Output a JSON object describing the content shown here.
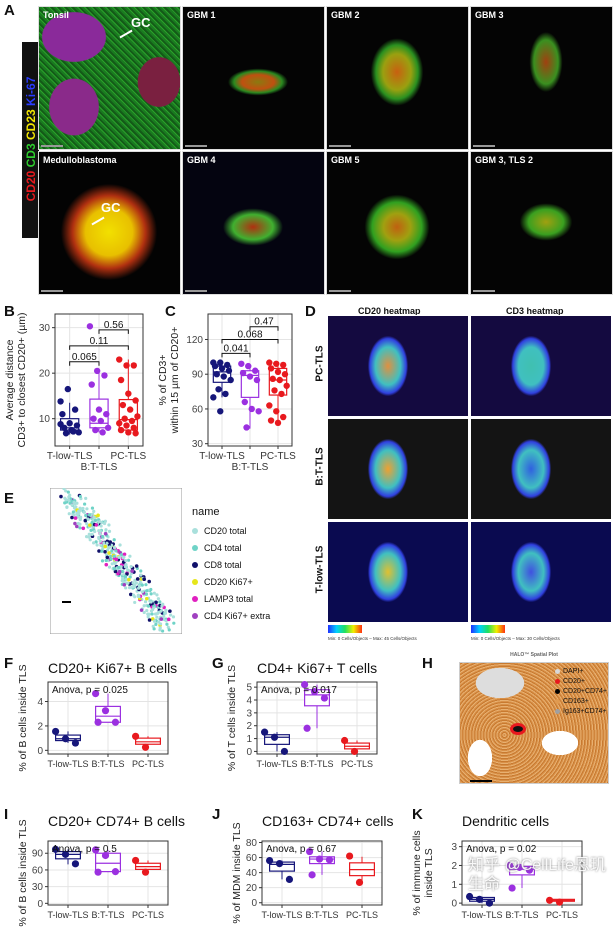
{
  "panels": {
    "A": "A",
    "B": "B",
    "C": "C",
    "D": "D",
    "E": "E",
    "F": "F",
    "G": "G",
    "H": "H",
    "I": "I",
    "J": "J",
    "K": "K"
  },
  "panel_a": {
    "channels": [
      {
        "name": "CD20",
        "color": "#e8191e"
      },
      {
        "name": "CD3",
        "color": "#2ecc2e"
      },
      {
        "name": "CD23",
        "color": "#f2e600"
      },
      {
        "name": "Ki-67",
        "color": "#2a3cff"
      }
    ],
    "tiles": [
      "Tonsil",
      "GBM 1",
      "GBM 2",
      "GBM 3",
      "Medulloblastoma",
      "GBM 4",
      "GBM 5",
      "GBM 3, TLS 2"
    ],
    "gc_label": "GC"
  },
  "panel_d": {
    "columns": [
      "CD20 heatmap",
      "CD3 heatmap"
    ],
    "rows": [
      "PC-TLS",
      "B:T-TLS",
      "T-low-TLS"
    ],
    "scale_cd20": "Min: 0 Cells/Objects – Max: 45 Cells/Objects",
    "scale_cd3": "Min: 0 Cells/Objects – Max: 30 Cells/Objects"
  },
  "panel_e": {
    "legend_title": "name",
    "legend": [
      {
        "label": "CD20 total",
        "color": "#a9e0dc"
      },
      {
        "label": "CD4 total",
        "color": "#6fd3c7"
      },
      {
        "label": "CD8 total",
        "color": "#10106a"
      },
      {
        "label": "CD20 Ki67+",
        "color": "#e6e61a"
      },
      {
        "label": "LAMP3 total",
        "color": "#e020c0"
      },
      {
        "label": "CD4 Ki67+ extra",
        "color": "#a040c0"
      }
    ]
  },
  "panel_h": {
    "title": "HALO™ Spatial Plot",
    "legend": [
      {
        "label": "DAPI+",
        "color": "#d8d8d8"
      },
      {
        "label": "CD20+",
        "color": "#e8191e"
      },
      {
        "label": "CD20+CD74+",
        "color": "#000000"
      },
      {
        "label": "CD163+",
        "color": "#e09a50"
      },
      {
        "label": "Ig163+CD74+",
        "color": "#a0a0a0"
      }
    ]
  },
  "colors": {
    "T-low-TLS": "#16167a",
    "B:T-TLS": "#9b30e0",
    "PC-TLS": "#e8191e"
  },
  "watermark": "知乎 @CellLife恩玑生命",
  "chart_data": [
    {
      "id": "B",
      "type": "box",
      "title": "",
      "ylabel": [
        "Average distance",
        "CD3+ to closest CD20+ (µm)"
      ],
      "ylim": [
        4,
        33
      ],
      "yticks": [
        10,
        20,
        30
      ],
      "categories": [
        "T-low-TLS",
        "B:T-TLS",
        "PC-TLS"
      ],
      "xtick_rotated": true,
      "grid": true,
      "series": [
        {
          "q1": 7.5,
          "median": 8,
          "q3": 10,
          "lo": 6.5,
          "hi": 13.5,
          "points": [
            13.8,
            16.5,
            12,
            11,
            9,
            8.5,
            8,
            7.5,
            7,
            6.8,
            7.2,
            8.8
          ]
        },
        {
          "q1": 8,
          "median": 9,
          "q3": 14.3,
          "lo": 7,
          "hi": 20.3,
          "points": [
            30.3,
            20.5,
            19.5,
            17.5,
            12,
            11,
            10,
            9.5,
            8,
            7.5,
            7
          ]
        },
        {
          "q1": 7.5,
          "median": 9.8,
          "q3": 14.2,
          "lo": 6.5,
          "hi": 23,
          "points": [
            23,
            21.7,
            21.7,
            18.5,
            15.5,
            14,
            13,
            12,
            10.5,
            10,
            9.5,
            9,
            8.5,
            8,
            7.5,
            7,
            6.8
          ]
        }
      ],
      "comparisons": [
        {
          "pair": [
            0,
            1
          ],
          "p": "0.065",
          "y": 22.5
        },
        {
          "pair": [
            0,
            2
          ],
          "p": "0.11",
          "y": 26
        },
        {
          "pair": [
            1,
            2
          ],
          "p": "0.56",
          "y": 29.5
        }
      ]
    },
    {
      "id": "C",
      "type": "box",
      "title": "",
      "ylabel": [
        "% of CD3+",
        "within 15 µm of CD20+"
      ],
      "ylim": [
        28,
        142
      ],
      "yticks": [
        30,
        60,
        90,
        120
      ],
      "categories": [
        "T-low-TLS",
        "B:T-TLS",
        "PC-TLS"
      ],
      "xtick_rotated": true,
      "grid": true,
      "series": [
        {
          "q1": 83,
          "median": 92,
          "q3": 97,
          "lo": 70,
          "hi": 100,
          "points": [
            100,
            100,
            98,
            97,
            95,
            93,
            90,
            88,
            85,
            77,
            73,
            70,
            58
          ]
        },
        {
          "q1": 70,
          "median": 89,
          "q3": 93,
          "lo": 43,
          "hi": 97,
          "points": [
            99,
            97,
            93,
            91,
            88,
            85,
            66,
            60,
            58,
            44
          ]
        },
        {
          "q1": 72,
          "median": 85,
          "q3": 95,
          "lo": 48,
          "hi": 100,
          "points": [
            100,
            99,
            98,
            95,
            92,
            90,
            86,
            85,
            80,
            76,
            73,
            63,
            58,
            53,
            50,
            48
          ]
        }
      ],
      "comparisons": [
        {
          "pair": [
            0,
            1
          ],
          "p": "0.041",
          "y": 108
        },
        {
          "pair": [
            0,
            2
          ],
          "p": "0.068",
          "y": 120
        },
        {
          "pair": [
            1,
            2
          ],
          "p": "0.47",
          "y": 131
        }
      ]
    },
    {
      "id": "F",
      "type": "box",
      "title": "CD20+ Ki67+ B cells",
      "annotation": "Anova, p = 0.025",
      "ylabel": [
        "% of B cells inside TLS"
      ],
      "ylim": [
        -0.3,
        5.6
      ],
      "yticks": [
        0,
        2,
        4
      ],
      "categories": [
        "T-low-TLS",
        "B:T-TLS",
        "PC-TLS"
      ],
      "grid": true,
      "series": [
        {
          "q1": 0.8,
          "median": 0.95,
          "q3": 1.25,
          "lo": 0.6,
          "hi": 1.55,
          "points": [
            1.55,
            0.95,
            0.6
          ]
        },
        {
          "q1": 2.3,
          "median": 2.8,
          "q3": 3.6,
          "lo": 2.3,
          "hi": 4.65,
          "points": [
            4.65,
            3.25,
            2.3,
            2.3
          ]
        },
        {
          "q1": 0.5,
          "median": 0.7,
          "q3": 1.0,
          "lo": 0.25,
          "hi": 1.15,
          "points": [
            1.15,
            0.25
          ]
        }
      ]
    },
    {
      "id": "G",
      "type": "box",
      "title": "CD4+ Ki67+ T cells",
      "annotation": "Anova, p = 0.017",
      "ylabel": [
        "% of T cells inside TLS"
      ],
      "ylim": [
        -0.2,
        5.4
      ],
      "yticks": [
        0,
        1,
        2,
        3,
        4,
        5
      ],
      "categories": [
        "T-low-TLS",
        "B:T-TLS",
        "PC-TLS"
      ],
      "grid": true,
      "series": [
        {
          "q1": 0.55,
          "median": 1.1,
          "q3": 1.3,
          "lo": 0,
          "hi": 1.5,
          "points": [
            1.5,
            1.1,
            0
          ]
        },
        {
          "q1": 3.55,
          "median": 4.4,
          "q3": 4.8,
          "lo": 1.8,
          "hi": 5.2,
          "points": [
            5.2,
            4.65,
            4.15,
            1.8
          ]
        },
        {
          "q1": 0.2,
          "median": 0.4,
          "q3": 0.65,
          "lo": 0,
          "hi": 0.85,
          "points": [
            0.85,
            0
          ]
        }
      ]
    },
    {
      "id": "I",
      "type": "box",
      "title": "CD20+ CD74+ B cells",
      "annotation": "Anova, p = 0.5",
      "ylabel": [
        "% of B cells inside TLS"
      ],
      "ylim": [
        -3,
        112
      ],
      "yticks": [
        0,
        30,
        60,
        90
      ],
      "categories": [
        "T-low-TLS",
        "B:T-TLS",
        "PC-TLS"
      ],
      "grid": true,
      "series": [
        {
          "q1": 80,
          "median": 88,
          "q3": 93,
          "lo": 70,
          "hi": 97,
          "points": [
            97,
            88,
            71
          ]
        },
        {
          "q1": 57,
          "median": 72,
          "q3": 90,
          "lo": 56,
          "hi": 96,
          "points": [
            96,
            86,
            57,
            56
          ]
        },
        {
          "q1": 61,
          "median": 66,
          "q3": 72,
          "lo": 56,
          "hi": 77,
          "points": [
            77,
            56
          ]
        }
      ]
    },
    {
      "id": "J",
      "type": "box",
      "title": "CD163+ CD74+ cells",
      "annotation": "Anova, p = 0.67",
      "ylabel": [
        "% of MDM inside TLS"
      ],
      "ylim": [
        -3,
        82
      ],
      "yticks": [
        0,
        20,
        40,
        60,
        80
      ],
      "categories": [
        "T-low-TLS",
        "B:T-TLS",
        "PC-TLS"
      ],
      "grid": true,
      "series": [
        {
          "q1": 42,
          "median": 51,
          "q3": 54,
          "lo": 31,
          "hi": 56,
          "points": [
            56,
            52,
            31
          ]
        },
        {
          "q1": 52,
          "median": 58,
          "q3": 61,
          "lo": 37,
          "hi": 68,
          "points": [
            68,
            58,
            57,
            37
          ]
        },
        {
          "q1": 36,
          "median": 44,
          "q3": 53,
          "lo": 27,
          "hi": 61,
          "points": [
            62,
            27
          ]
        }
      ]
    },
    {
      "id": "K",
      "type": "box",
      "title": "Dendritic cells",
      "annotation": "Anova, p = 0.02",
      "ylabel": [
        "% of immune cells",
        "inside TLS"
      ],
      "ylim": [
        -0.1,
        3.3
      ],
      "yticks": [
        0,
        1,
        2,
        3
      ],
      "categories": [
        "T-low-TLS",
        "B:T-TLS",
        "PC-TLS"
      ],
      "grid": true,
      "series": [
        {
          "q1": 0.1,
          "median": 0.2,
          "q3": 0.3,
          "lo": 0,
          "hi": 0.35,
          "points": [
            0.35,
            0.2,
            0
          ]
        },
        {
          "q1": 1.5,
          "median": 1.8,
          "q3": 1.95,
          "lo": 0.8,
          "hi": 2,
          "points": [
            2,
            1.9,
            1.75,
            0.8
          ]
        },
        {
          "q1": 0.1,
          "median": 0.15,
          "q3": 0.2,
          "lo": 0.05,
          "hi": 0.2,
          "points": [
            0.15,
            0.05
          ]
        }
      ]
    }
  ]
}
